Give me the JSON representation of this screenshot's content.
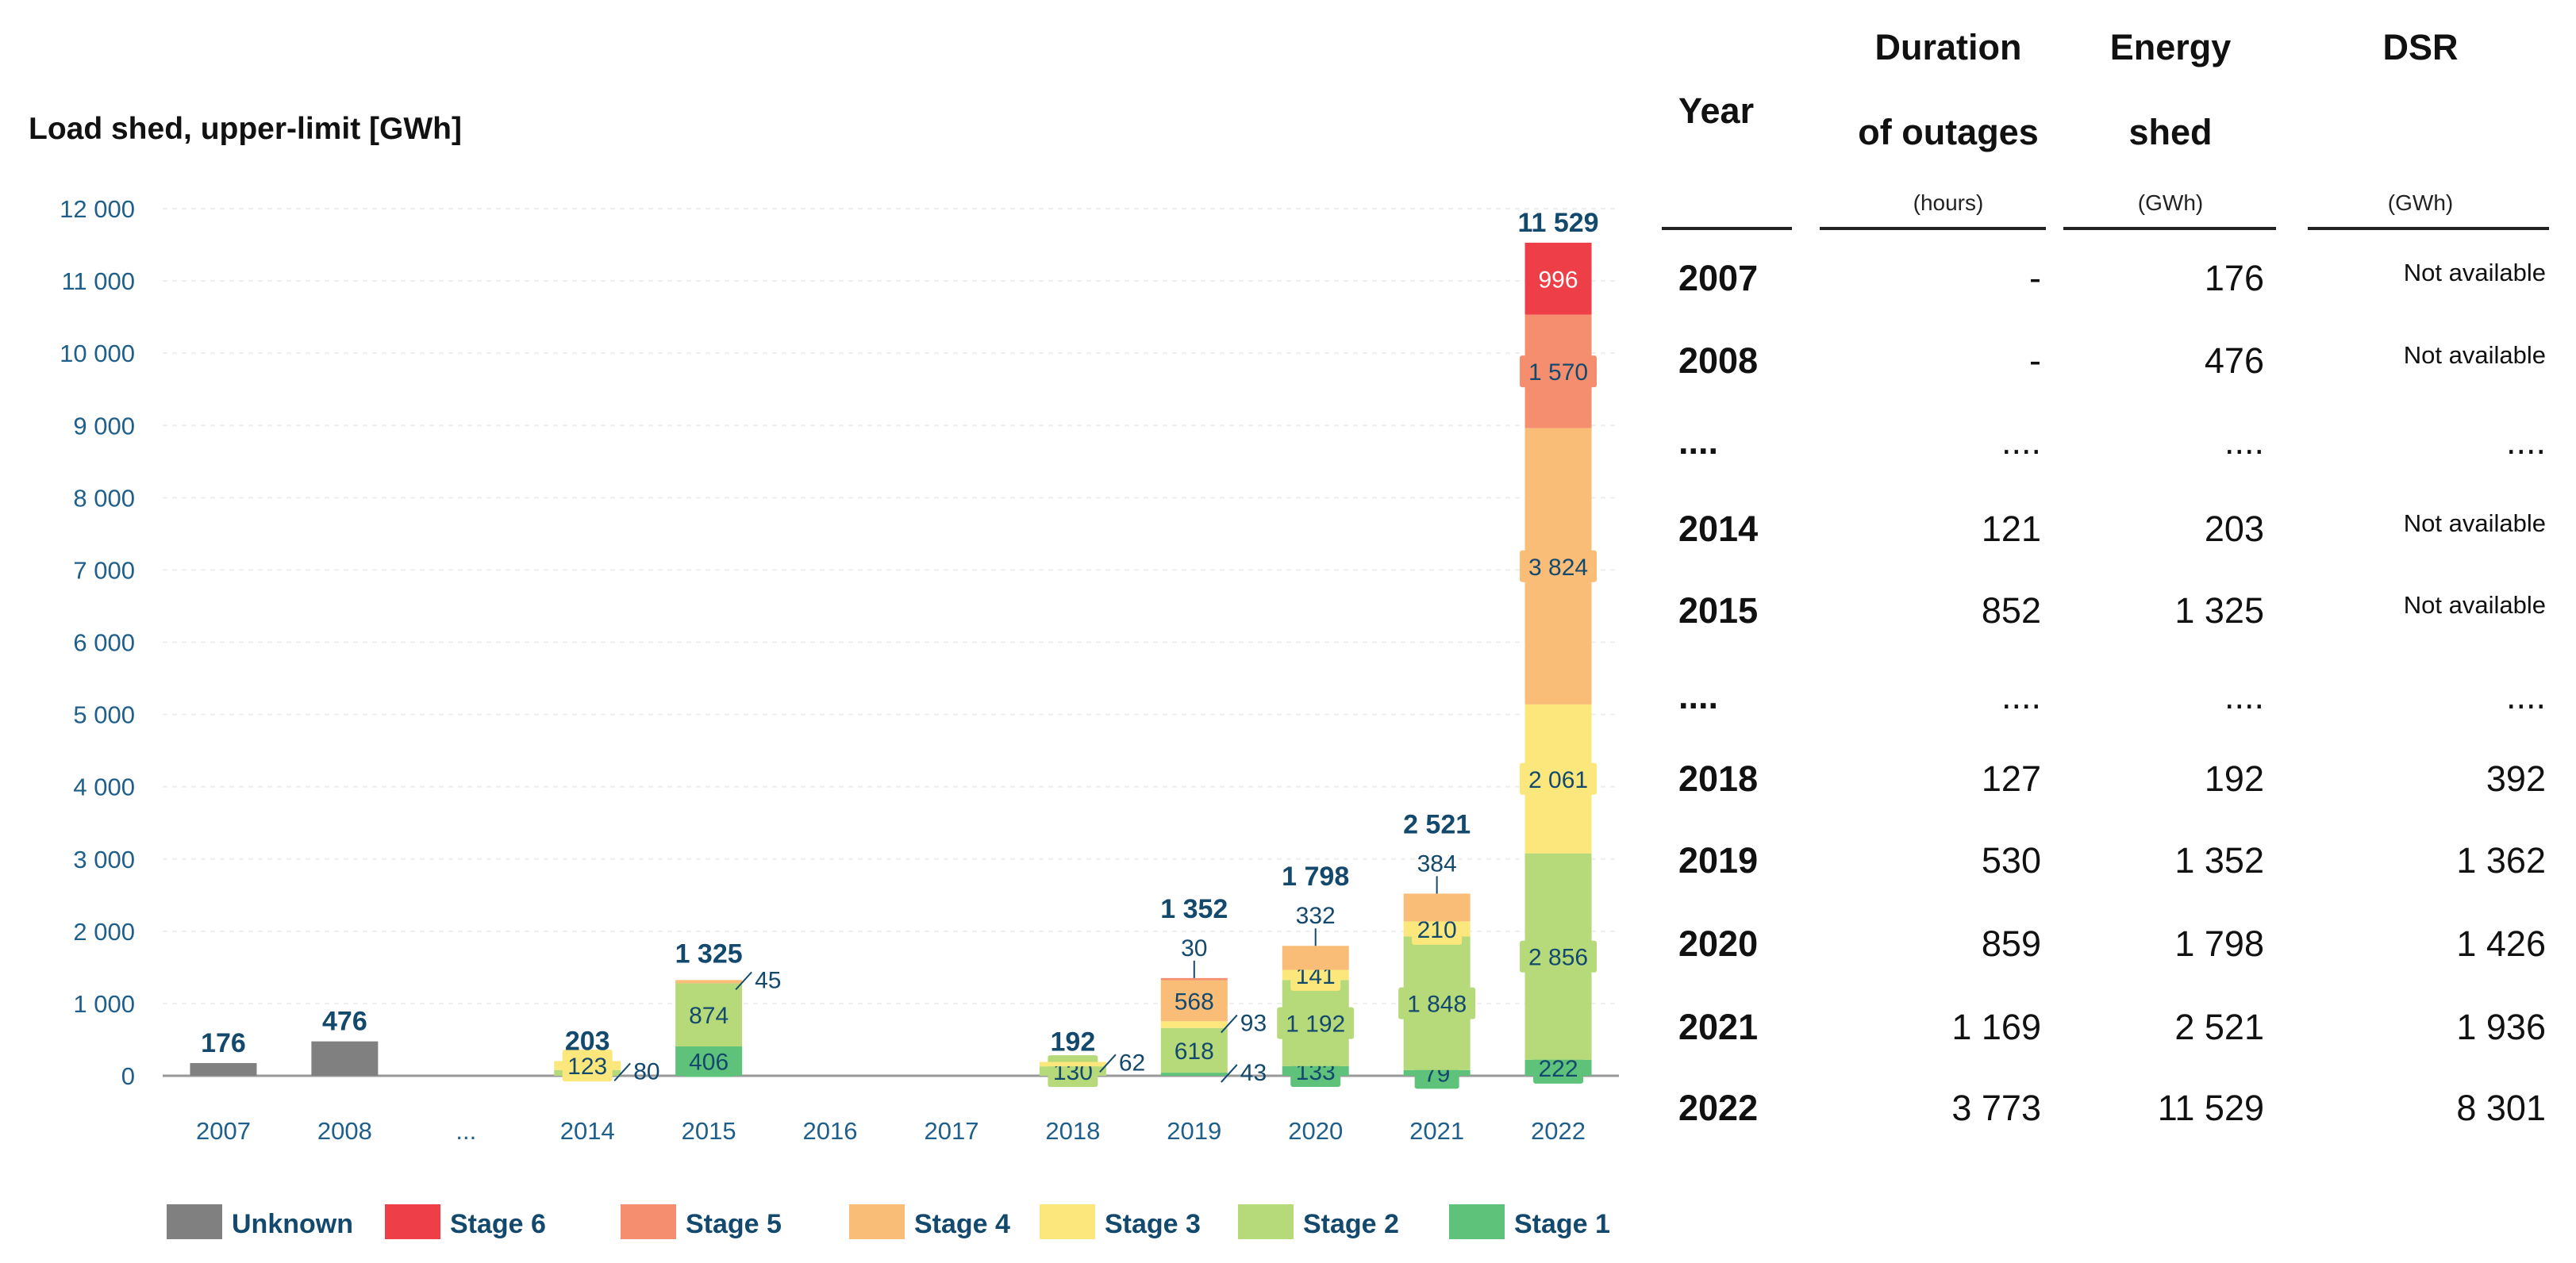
{
  "chart_data": {
    "type": "bar",
    "stacked": true,
    "title": "Load shed, upper-limit [GWh]",
    "ylim": [
      0,
      12000
    ],
    "yticks": [
      0,
      1000,
      2000,
      3000,
      4000,
      5000,
      6000,
      7000,
      8000,
      9000,
      10000,
      11000,
      12000
    ],
    "ytick_labels": [
      "0",
      "1 000",
      "2 000",
      "3 000",
      "4 000",
      "5 000",
      "6 000",
      "7 000",
      "8 000",
      "9 000",
      "10 000",
      "11 000",
      "12 000"
    ],
    "categories": [
      "2007",
      "2008",
      "...",
      "2014",
      "2015",
      "2016",
      "2017",
      "2018",
      "2019",
      "2020",
      "2021",
      "2022"
    ],
    "totals": [
      176,
      476,
      null,
      203,
      1325,
      null,
      null,
      192,
      1352,
      1798,
      2521,
      11529
    ],
    "total_labels": [
      "176",
      "476",
      "",
      "203",
      "1 325",
      "",
      "",
      "192",
      "1 352",
      "1 798",
      "2 521",
      "11 529"
    ],
    "series": [
      {
        "name": "Unknown",
        "color": "#808080",
        "values": [
          176,
          476,
          null,
          null,
          null,
          null,
          null,
          null,
          null,
          null,
          null,
          null
        ],
        "labels": [
          "",
          "",
          "",
          "",
          "",
          "",
          "",
          "",
          "",
          "",
          "",
          ""
        ]
      },
      {
        "name": "Stage 1",
        "color": "#5ec27a",
        "values": [
          null,
          null,
          null,
          null,
          406,
          null,
          null,
          null,
          43,
          133,
          79,
          222
        ],
        "labels": [
          "",
          "",
          "",
          "",
          "406",
          "",
          "",
          "",
          "43",
          "133",
          "79",
          "222"
        ]
      },
      {
        "name": "Stage 2",
        "color": "#b6d97a",
        "values": [
          null,
          null,
          null,
          80,
          874,
          null,
          null,
          130,
          618,
          1192,
          1848,
          2856
        ],
        "labels": [
          "",
          "",
          "",
          "80",
          "874",
          "",
          "",
          "130",
          "618",
          "1 192",
          "1 848",
          "2 856"
        ]
      },
      {
        "name": "Stage 3",
        "color": "#fbe77c",
        "values": [
          null,
          null,
          null,
          123,
          null,
          null,
          null,
          62,
          93,
          141,
          210,
          2061
        ],
        "labels": [
          "",
          "",
          "",
          "123",
          "",
          "",
          "",
          "62",
          "93",
          "141",
          "210",
          "2 061"
        ]
      },
      {
        "name": "Stage 4",
        "color": "#f9bd78",
        "values": [
          null,
          null,
          null,
          null,
          45,
          null,
          null,
          null,
          568,
          332,
          384,
          3824
        ],
        "labels": [
          "",
          "",
          "",
          "",
          "45",
          "",
          "",
          "",
          "568",
          "332",
          "384",
          "3 824"
        ]
      },
      {
        "name": "Stage 5",
        "color": "#f58e6e",
        "values": [
          null,
          null,
          null,
          null,
          null,
          null,
          null,
          null,
          30,
          null,
          null,
          1570
        ],
        "labels": [
          "",
          "",
          "",
          "",
          "",
          "",
          "",
          "",
          "30",
          "",
          "",
          "1 570"
        ]
      },
      {
        "name": "Stage 6",
        "color": "#ee3e48",
        "values": [
          null,
          null,
          null,
          null,
          null,
          null,
          null,
          null,
          null,
          null,
          null,
          996
        ],
        "labels": [
          "",
          "",
          "",
          "",
          "",
          "",
          "",
          "",
          "",
          "",
          "",
          "996"
        ]
      }
    ],
    "legend": [
      "Unknown",
      "Stage 6",
      "Stage 5",
      "Stage 4",
      "Stage 3",
      "Stage 2",
      "Stage 1"
    ],
    "legend_position": "bottom",
    "grid": true
  },
  "table": {
    "headers": [
      {
        "line1": "Year",
        "line2": "",
        "unit": ""
      },
      {
        "line1": "Duration",
        "line2": "of outages",
        "unit": "(hours)"
      },
      {
        "line1": "Energy",
        "line2": "shed",
        "unit": "(GWh)"
      },
      {
        "line1": "DSR",
        "line2": "",
        "unit": "(GWh)"
      }
    ],
    "rows": [
      {
        "year": "2007",
        "duration": "-",
        "energy": "176",
        "dsr": "Not available"
      },
      {
        "year": "2008",
        "duration": "-",
        "energy": "476",
        "dsr": "Not available"
      },
      {
        "year": "....",
        "duration": "....",
        "energy": "....",
        "dsr": "...."
      },
      {
        "year": "2014",
        "duration": "121",
        "energy": "203",
        "dsr": "Not available"
      },
      {
        "year": "2015",
        "duration": "852",
        "energy": "1 325",
        "dsr": "Not available"
      },
      {
        "year": "....",
        "duration": "....",
        "energy": "....",
        "dsr": "...."
      },
      {
        "year": "2018",
        "duration": "127",
        "energy": "192",
        "dsr": "392"
      },
      {
        "year": "2019",
        "duration": "530",
        "energy": "1 352",
        "dsr": "1 362"
      },
      {
        "year": "2020",
        "duration": "859",
        "energy": "1 798",
        "dsr": "1 426"
      },
      {
        "year": "2021",
        "duration": "1 169",
        "energy": "2 521",
        "dsr": "1 936"
      },
      {
        "year": "2022",
        "duration": "3 773",
        "energy": "11 529",
        "dsr": "8 301"
      }
    ]
  }
}
